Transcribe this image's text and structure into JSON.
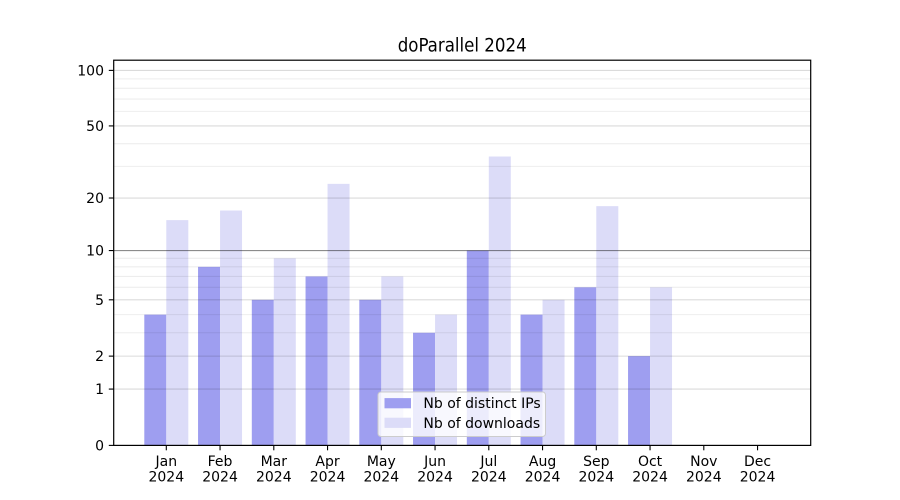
{
  "chart_data": {
    "type": "bar",
    "title": "doParallel 2024",
    "categories": [
      "Jan",
      "Feb",
      "Mar",
      "Apr",
      "May",
      "Jun",
      "Jul",
      "Aug",
      "Sep",
      "Oct",
      "Nov",
      "Dec"
    ],
    "category_year": "2024",
    "series": [
      {
        "name": "Nb of distinct IPs",
        "color": "#9e9ef0",
        "values": [
          4,
          8,
          5,
          7,
          5,
          3,
          10,
          4,
          6,
          2,
          0,
          0
        ]
      },
      {
        "name": "Nb of downloads",
        "color": "#dcdcf8",
        "values": [
          15,
          17,
          9,
          24,
          7,
          4,
          34,
          5,
          18,
          6,
          0,
          0
        ]
      }
    ],
    "yscale": "log1p",
    "ylim": [
      0,
      113.5
    ],
    "yticks": [
      0,
      1,
      2,
      5,
      10,
      20,
      50,
      100
    ],
    "yticks_minor": [
      3,
      4,
      6,
      7,
      8,
      9,
      30,
      40,
      60,
      70,
      80,
      90
    ],
    "emphasized_gridline": 10,
    "grid": "both",
    "legend_position": "lower center",
    "colors": {
      "grid_major": "rgba(0,0,0,0.14)",
      "grid_minor": "rgba(0,0,0,0.07)",
      "grid_emphasis": "rgba(0,0,0,0.45)",
      "spine": "#000000",
      "legend_border": "#cccccc",
      "legend_background": "rgba(255,255,255,0.8)",
      "text": "#000000"
    }
  }
}
